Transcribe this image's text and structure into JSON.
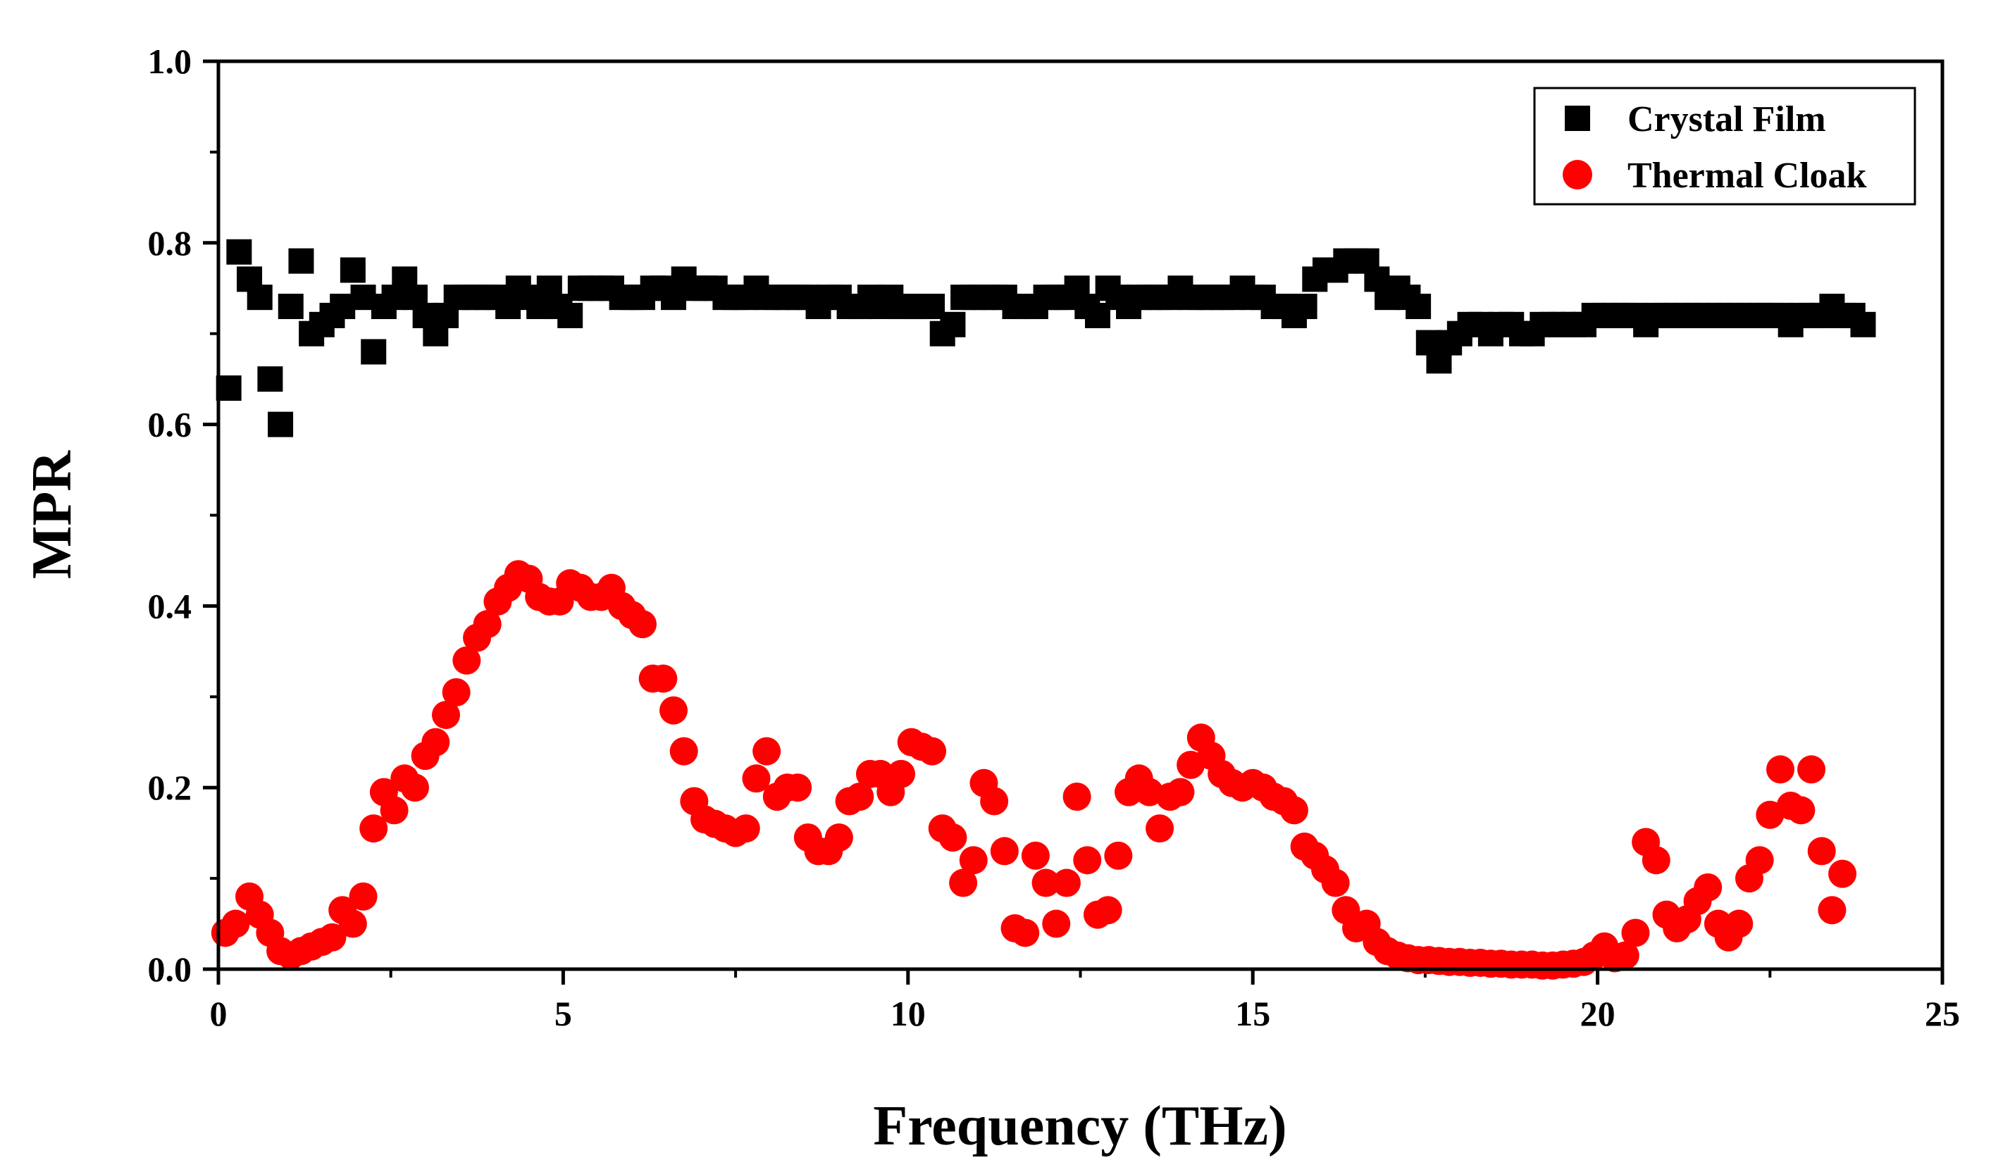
{
  "chart_data": {
    "type": "scatter",
    "title": "",
    "xlabel": "Frequency (THz)",
    "ylabel": "MPR",
    "xlim": [
      0,
      25
    ],
    "ylim": [
      0.0,
      1.0
    ],
    "xticks": [
      0,
      5,
      10,
      15,
      20,
      25
    ],
    "xtick_labels": [
      "0",
      "5",
      "10",
      "15",
      "20",
      "25"
    ],
    "yticks": [
      0.0,
      0.2,
      0.4,
      0.6,
      0.8,
      1.0
    ],
    "ytick_labels": [
      "0.0",
      "0.2",
      "0.4",
      "0.6",
      "0.8",
      "1.0"
    ],
    "grid": false,
    "legend_position": "top-right",
    "series": [
      {
        "name": "Crystal Film",
        "marker": "square",
        "color": "#000000",
        "points": [
          [
            0.15,
            0.64
          ],
          [
            0.3,
            0.79
          ],
          [
            0.45,
            0.76
          ],
          [
            0.6,
            0.74
          ],
          [
            0.75,
            0.65
          ],
          [
            0.9,
            0.6
          ],
          [
            1.05,
            0.73
          ],
          [
            1.2,
            0.78
          ],
          [
            1.35,
            0.7
          ],
          [
            1.5,
            0.71
          ],
          [
            1.65,
            0.72
          ],
          [
            1.8,
            0.73
          ],
          [
            1.95,
            0.77
          ],
          [
            2.1,
            0.74
          ],
          [
            2.25,
            0.68
          ],
          [
            2.4,
            0.73
          ],
          [
            2.55,
            0.74
          ],
          [
            2.7,
            0.76
          ],
          [
            2.85,
            0.74
          ],
          [
            3.0,
            0.72
          ],
          [
            3.15,
            0.7
          ],
          [
            3.3,
            0.72
          ],
          [
            3.45,
            0.74
          ],
          [
            3.6,
            0.74
          ],
          [
            3.75,
            0.74
          ],
          [
            3.9,
            0.74
          ],
          [
            4.05,
            0.74
          ],
          [
            4.2,
            0.73
          ],
          [
            4.35,
            0.75
          ],
          [
            4.5,
            0.74
          ],
          [
            4.65,
            0.73
          ],
          [
            4.8,
            0.75
          ],
          [
            4.95,
            0.73
          ],
          [
            5.1,
            0.72
          ],
          [
            5.25,
            0.75
          ],
          [
            5.4,
            0.75
          ],
          [
            5.55,
            0.75
          ],
          [
            5.7,
            0.75
          ],
          [
            5.85,
            0.74
          ],
          [
            6.0,
            0.74
          ],
          [
            6.15,
            0.74
          ],
          [
            6.3,
            0.75
          ],
          [
            6.45,
            0.75
          ],
          [
            6.6,
            0.74
          ],
          [
            6.75,
            0.76
          ],
          [
            6.9,
            0.75
          ],
          [
            7.05,
            0.75
          ],
          [
            7.2,
            0.75
          ],
          [
            7.35,
            0.74
          ],
          [
            7.5,
            0.74
          ],
          [
            7.65,
            0.74
          ],
          [
            7.8,
            0.75
          ],
          [
            7.95,
            0.74
          ],
          [
            8.1,
            0.74
          ],
          [
            8.25,
            0.74
          ],
          [
            8.4,
            0.74
          ],
          [
            8.55,
            0.74
          ],
          [
            8.7,
            0.73
          ],
          [
            8.85,
            0.74
          ],
          [
            9.0,
            0.74
          ],
          [
            9.15,
            0.73
          ],
          [
            9.3,
            0.73
          ],
          [
            9.45,
            0.74
          ],
          [
            9.6,
            0.73
          ],
          [
            9.75,
            0.74
          ],
          [
            9.9,
            0.73
          ],
          [
            10.05,
            0.73
          ],
          [
            10.2,
            0.73
          ],
          [
            10.35,
            0.73
          ],
          [
            10.5,
            0.7
          ],
          [
            10.65,
            0.71
          ],
          [
            10.8,
            0.74
          ],
          [
            10.95,
            0.74
          ],
          [
            11.1,
            0.74
          ],
          [
            11.25,
            0.74
          ],
          [
            11.4,
            0.74
          ],
          [
            11.55,
            0.73
          ],
          [
            11.7,
            0.73
          ],
          [
            11.85,
            0.73
          ],
          [
            12.0,
            0.74
          ],
          [
            12.15,
            0.74
          ],
          [
            12.3,
            0.74
          ],
          [
            12.45,
            0.75
          ],
          [
            12.6,
            0.73
          ],
          [
            12.75,
            0.72
          ],
          [
            12.9,
            0.75
          ],
          [
            13.05,
            0.74
          ],
          [
            13.2,
            0.73
          ],
          [
            13.35,
            0.74
          ],
          [
            13.5,
            0.74
          ],
          [
            13.65,
            0.74
          ],
          [
            13.8,
            0.74
          ],
          [
            13.95,
            0.75
          ],
          [
            14.1,
            0.74
          ],
          [
            14.25,
            0.74
          ],
          [
            14.4,
            0.74
          ],
          [
            14.55,
            0.74
          ],
          [
            14.7,
            0.74
          ],
          [
            14.85,
            0.75
          ],
          [
            15.0,
            0.74
          ],
          [
            15.15,
            0.74
          ],
          [
            15.3,
            0.73
          ],
          [
            15.45,
            0.73
          ],
          [
            15.6,
            0.72
          ],
          [
            15.75,
            0.73
          ],
          [
            15.9,
            0.76
          ],
          [
            16.05,
            0.77
          ],
          [
            16.2,
            0.77
          ],
          [
            16.35,
            0.78
          ],
          [
            16.5,
            0.78
          ],
          [
            16.65,
            0.78
          ],
          [
            16.8,
            0.76
          ],
          [
            16.95,
            0.74
          ],
          [
            17.1,
            0.75
          ],
          [
            17.25,
            0.74
          ],
          [
            17.4,
            0.73
          ],
          [
            17.55,
            0.69
          ],
          [
            17.7,
            0.67
          ],
          [
            17.85,
            0.69
          ],
          [
            18.0,
            0.7
          ],
          [
            18.15,
            0.71
          ],
          [
            18.3,
            0.71
          ],
          [
            18.45,
            0.7
          ],
          [
            18.6,
            0.71
          ],
          [
            18.75,
            0.71
          ],
          [
            18.9,
            0.7
          ],
          [
            19.05,
            0.7
          ],
          [
            19.2,
            0.71
          ],
          [
            19.35,
            0.71
          ],
          [
            19.5,
            0.71
          ],
          [
            19.65,
            0.71
          ],
          [
            19.8,
            0.71
          ],
          [
            19.95,
            0.72
          ],
          [
            20.1,
            0.72
          ],
          [
            20.25,
            0.72
          ],
          [
            20.4,
            0.72
          ],
          [
            20.55,
            0.72
          ],
          [
            20.7,
            0.71
          ],
          [
            20.85,
            0.72
          ],
          [
            21.0,
            0.72
          ],
          [
            21.15,
            0.72
          ],
          [
            21.3,
            0.72
          ],
          [
            21.45,
            0.72
          ],
          [
            21.6,
            0.72
          ],
          [
            21.75,
            0.72
          ],
          [
            21.9,
            0.72
          ],
          [
            22.05,
            0.72
          ],
          [
            22.2,
            0.72
          ],
          [
            22.35,
            0.72
          ],
          [
            22.5,
            0.72
          ],
          [
            22.65,
            0.72
          ],
          [
            22.8,
            0.71
          ],
          [
            22.95,
            0.72
          ],
          [
            23.1,
            0.72
          ],
          [
            23.25,
            0.72
          ],
          [
            23.4,
            0.73
          ],
          [
            23.55,
            0.72
          ],
          [
            23.7,
            0.72
          ],
          [
            23.85,
            0.71
          ]
        ]
      },
      {
        "name": "Thermal Cloak",
        "marker": "circle",
        "color": "#ff0000",
        "points": [
          [
            0.1,
            0.04
          ],
          [
            0.25,
            0.05
          ],
          [
            0.45,
            0.08
          ],
          [
            0.6,
            0.06
          ],
          [
            0.75,
            0.04
          ],
          [
            0.9,
            0.02
          ],
          [
            1.05,
            0.015
          ],
          [
            1.2,
            0.02
          ],
          [
            1.35,
            0.025
          ],
          [
            1.5,
            0.03
          ],
          [
            1.65,
            0.035
          ],
          [
            1.8,
            0.065
          ],
          [
            1.95,
            0.05
          ],
          [
            2.1,
            0.08
          ],
          [
            2.25,
            0.155
          ],
          [
            2.4,
            0.195
          ],
          [
            2.55,
            0.175
          ],
          [
            2.7,
            0.21
          ],
          [
            2.85,
            0.2
          ],
          [
            3.0,
            0.235
          ],
          [
            3.15,
            0.25
          ],
          [
            3.3,
            0.28
          ],
          [
            3.45,
            0.305
          ],
          [
            3.6,
            0.34
          ],
          [
            3.75,
            0.365
          ],
          [
            3.9,
            0.38
          ],
          [
            4.05,
            0.405
          ],
          [
            4.2,
            0.42
          ],
          [
            4.35,
            0.435
          ],
          [
            4.5,
            0.43
          ],
          [
            4.65,
            0.41
          ],
          [
            4.8,
            0.405
          ],
          [
            4.95,
            0.405
          ],
          [
            5.1,
            0.425
          ],
          [
            5.25,
            0.42
          ],
          [
            5.4,
            0.41
          ],
          [
            5.55,
            0.41
          ],
          [
            5.7,
            0.42
          ],
          [
            5.85,
            0.4
          ],
          [
            6.0,
            0.39
          ],
          [
            6.15,
            0.38
          ],
          [
            6.3,
            0.32
          ],
          [
            6.45,
            0.32
          ],
          [
            6.6,
            0.285
          ],
          [
            6.75,
            0.24
          ],
          [
            6.9,
            0.185
          ],
          [
            7.05,
            0.165
          ],
          [
            7.2,
            0.16
          ],
          [
            7.35,
            0.155
          ],
          [
            7.5,
            0.15
          ],
          [
            7.65,
            0.155
          ],
          [
            7.8,
            0.21
          ],
          [
            7.95,
            0.24
          ],
          [
            8.1,
            0.19
          ],
          [
            8.25,
            0.2
          ],
          [
            8.4,
            0.2
          ],
          [
            8.55,
            0.145
          ],
          [
            8.7,
            0.13
          ],
          [
            8.85,
            0.13
          ],
          [
            9.0,
            0.145
          ],
          [
            9.15,
            0.185
          ],
          [
            9.3,
            0.19
          ],
          [
            9.45,
            0.215
          ],
          [
            9.6,
            0.215
          ],
          [
            9.75,
            0.195
          ],
          [
            9.9,
            0.215
          ],
          [
            10.05,
            0.25
          ],
          [
            10.2,
            0.245
          ],
          [
            10.35,
            0.24
          ],
          [
            10.5,
            0.155
          ],
          [
            10.65,
            0.145
          ],
          [
            10.8,
            0.095
          ],
          [
            10.95,
            0.12
          ],
          [
            11.1,
            0.205
          ],
          [
            11.25,
            0.185
          ],
          [
            11.4,
            0.13
          ],
          [
            11.55,
            0.045
          ],
          [
            11.7,
            0.04
          ],
          [
            11.85,
            0.125
          ],
          [
            12.0,
            0.095
          ],
          [
            12.15,
            0.05
          ],
          [
            12.3,
            0.095
          ],
          [
            12.45,
            0.19
          ],
          [
            12.6,
            0.12
          ],
          [
            12.75,
            0.06
          ],
          [
            12.9,
            0.065
          ],
          [
            13.05,
            0.125
          ],
          [
            13.2,
            0.195
          ],
          [
            13.35,
            0.21
          ],
          [
            13.5,
            0.195
          ],
          [
            13.65,
            0.155
          ],
          [
            13.8,
            0.19
          ],
          [
            13.95,
            0.195
          ],
          [
            14.1,
            0.225
          ],
          [
            14.25,
            0.255
          ],
          [
            14.4,
            0.235
          ],
          [
            14.55,
            0.215
          ],
          [
            14.7,
            0.205
          ],
          [
            14.85,
            0.2
          ],
          [
            15.0,
            0.205
          ],
          [
            15.15,
            0.2
          ],
          [
            15.3,
            0.19
          ],
          [
            15.45,
            0.185
          ],
          [
            15.6,
            0.175
          ],
          [
            15.75,
            0.135
          ],
          [
            15.9,
            0.125
          ],
          [
            16.05,
            0.11
          ],
          [
            16.2,
            0.095
          ],
          [
            16.35,
            0.065
          ],
          [
            16.5,
            0.045
          ],
          [
            16.65,
            0.05
          ],
          [
            16.8,
            0.03
          ],
          [
            16.95,
            0.02
          ],
          [
            17.1,
            0.015
          ],
          [
            17.25,
            0.012
          ],
          [
            17.4,
            0.01
          ],
          [
            17.55,
            0.01
          ],
          [
            17.7,
            0.009
          ],
          [
            17.85,
            0.008
          ],
          [
            18.0,
            0.008
          ],
          [
            18.15,
            0.007
          ],
          [
            18.3,
            0.007
          ],
          [
            18.45,
            0.006
          ],
          [
            18.6,
            0.006
          ],
          [
            18.75,
            0.005
          ],
          [
            18.9,
            0.005
          ],
          [
            19.05,
            0.005
          ],
          [
            19.2,
            0.004
          ],
          [
            19.35,
            0.004
          ],
          [
            19.5,
            0.005
          ],
          [
            19.65,
            0.006
          ],
          [
            19.8,
            0.008
          ],
          [
            19.95,
            0.015
          ],
          [
            20.1,
            0.025
          ],
          [
            20.25,
            0.012
          ],
          [
            20.4,
            0.015
          ],
          [
            20.55,
            0.04
          ],
          [
            20.7,
            0.14
          ],
          [
            20.85,
            0.12
          ],
          [
            21.0,
            0.06
          ],
          [
            21.15,
            0.045
          ],
          [
            21.3,
            0.055
          ],
          [
            21.45,
            0.075
          ],
          [
            21.6,
            0.09
          ],
          [
            21.75,
            0.05
          ],
          [
            21.9,
            0.035
          ],
          [
            22.05,
            0.05
          ],
          [
            22.2,
            0.1
          ],
          [
            22.35,
            0.12
          ],
          [
            22.5,
            0.17
          ],
          [
            22.65,
            0.22
          ],
          [
            22.8,
            0.18
          ],
          [
            22.95,
            0.175
          ],
          [
            23.1,
            0.22
          ],
          [
            23.25,
            0.13
          ],
          [
            23.4,
            0.065
          ],
          [
            23.55,
            0.105
          ]
        ]
      }
    ]
  }
}
